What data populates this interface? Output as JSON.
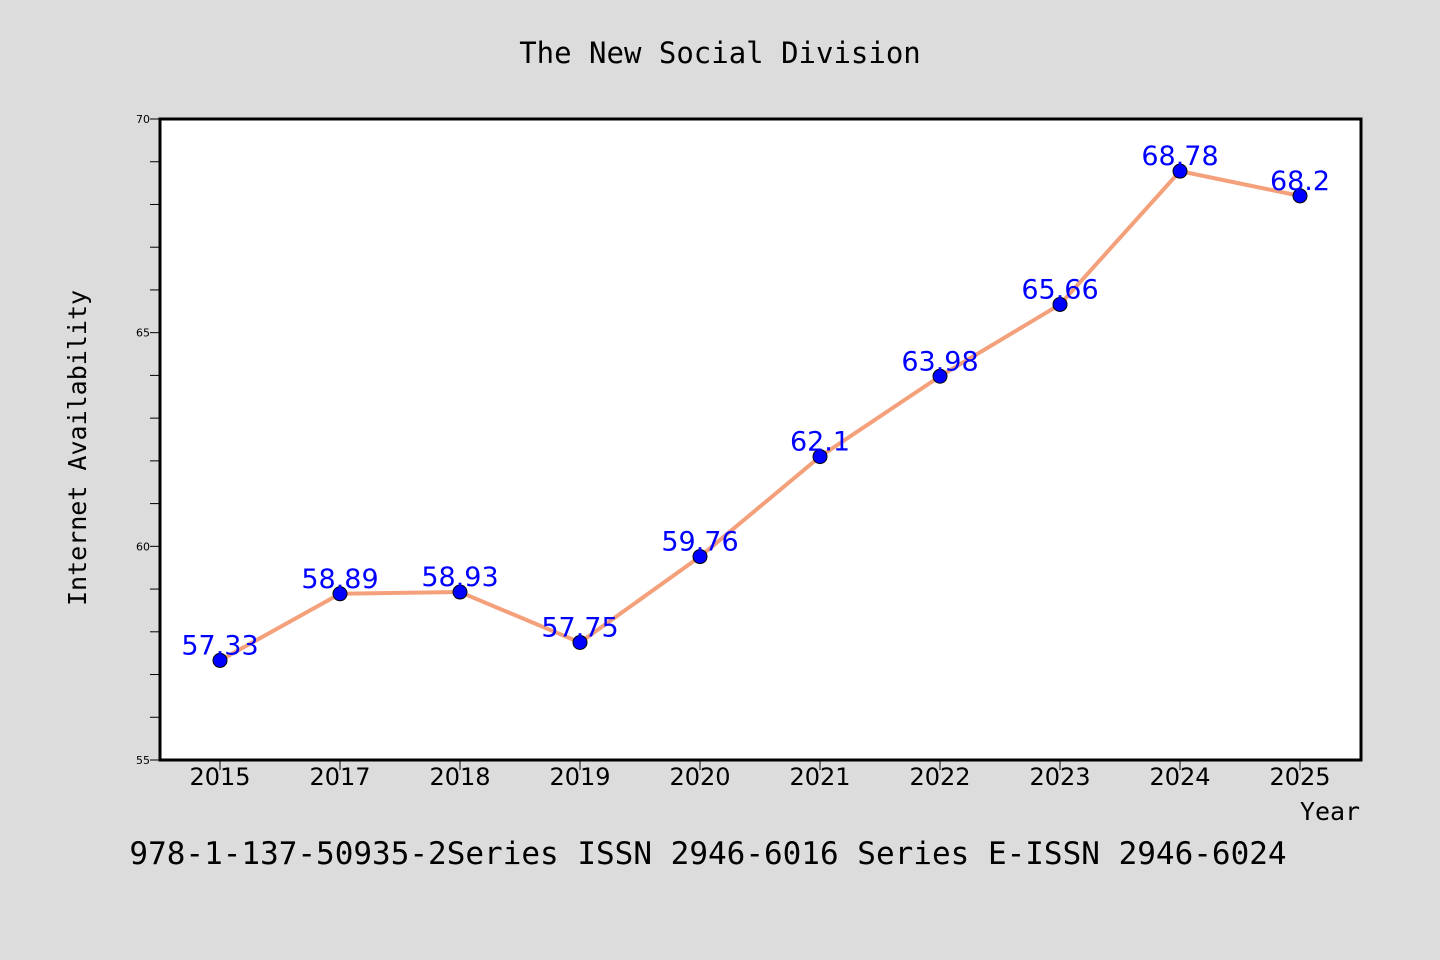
{
  "chart_data": {
    "type": "line",
    "title": "The New Social Division",
    "xlabel": "Year",
    "ylabel": "Internet Availability",
    "footer": "978-1-137-50935-2Series ISSN 2946-6016 Series E-ISSN 2946-6024",
    "categories": [
      "2015",
      "2017",
      "2018",
      "2019",
      "2020",
      "2021",
      "2022",
      "2023",
      "2024",
      "2025"
    ],
    "series": [
      {
        "values": [
          57.33,
          58.89,
          58.93,
          57.75,
          59.76,
          62.1,
          63.98,
          65.66,
          68.78,
          68.2
        ],
        "labels": [
          "57.33",
          "58.89",
          "58.93",
          "57.75",
          "59.76",
          "62.1",
          "63.98",
          "65.66",
          "68.78",
          "68.2"
        ]
      }
    ],
    "ylim": [
      55,
      70
    ],
    "yticks": [
      "55",
      "60",
      "65",
      "70"
    ],
    "grid": false,
    "colors": {
      "line": "#f4a07a",
      "marker": "#0000ff",
      "label": "#0000ff",
      "plot_background": "#ffffff",
      "page_background": "#dcdcdc"
    }
  }
}
